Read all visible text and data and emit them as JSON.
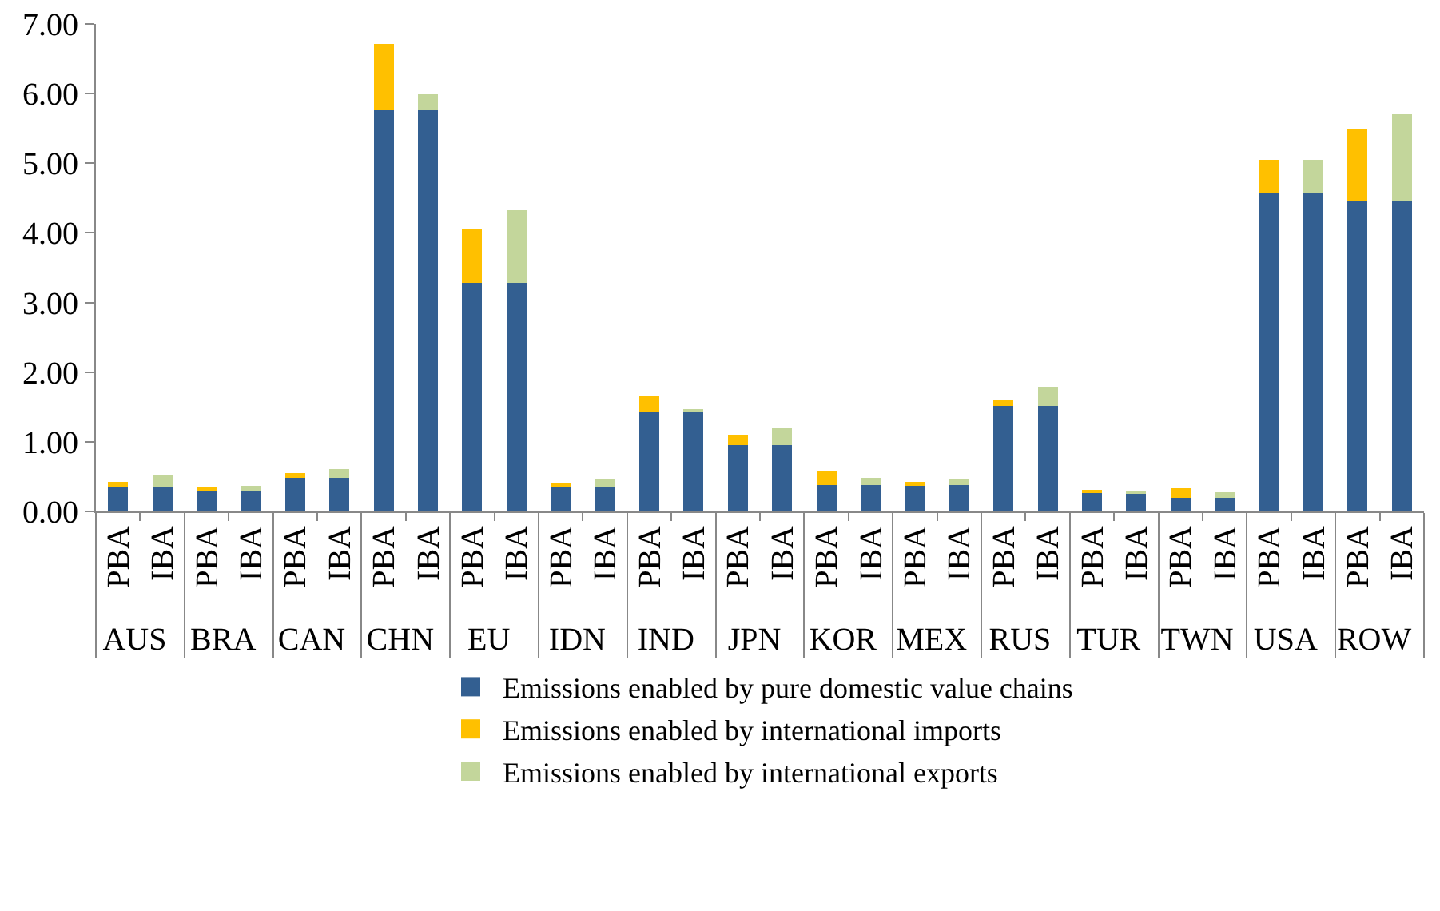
{
  "chart_data": {
    "type": "bar",
    "stacked": true,
    "categories": [
      "PBA",
      "IBA",
      "PBA",
      "IBA",
      "PBA",
      "IBA",
      "PBA",
      "IBA",
      "PBA",
      "IBA",
      "PBA",
      "IBA",
      "PBA",
      "IBA",
      "PBA",
      "IBA",
      "PBA",
      "IBA",
      "PBA",
      "IBA",
      "PBA",
      "IBA",
      "PBA",
      "IBA",
      "PBA",
      "IBA",
      "PBA",
      "IBA",
      "PBA",
      "IBA"
    ],
    "annotations": [
      "AUS",
      "BRA",
      "CAN",
      "CHN",
      "EU",
      "IDN",
      "IND",
      "JPN",
      "KOR",
      "MEX",
      "RUS",
      "TUR",
      "TWN",
      "USA",
      "ROW"
    ],
    "series": [
      {
        "name": "Emissions enabled by pure domestic value chains",
        "color": "#335f91",
        "values": [
          0.35,
          0.35,
          0.3,
          0.3,
          0.48,
          0.48,
          5.76,
          5.76,
          3.28,
          3.28,
          0.36,
          0.36,
          1.42,
          1.42,
          0.95,
          0.95,
          0.38,
          0.38,
          0.38,
          0.38,
          1.52,
          1.52,
          0.26,
          0.26,
          0.2,
          0.2,
          4.58,
          4.58,
          4.45,
          4.45
        ]
      },
      {
        "name": "Emissions enabled by international imports",
        "color": "#ffc000",
        "values": [
          0.08,
          null,
          0.04,
          null,
          0.07,
          null,
          0.95,
          null,
          0.77,
          null,
          0.04,
          null,
          0.24,
          null,
          0.15,
          null,
          0.19,
          null,
          0.04,
          null,
          0.08,
          null,
          0.05,
          null,
          0.13,
          null,
          0.47,
          null,
          1.05,
          null
        ]
      },
      {
        "name": "Emissions enabled by international exports",
        "color": "#c3d69b",
        "values": [
          null,
          0.17,
          null,
          0.07,
          null,
          0.13,
          null,
          0.23,
          null,
          1.05,
          null,
          0.1,
          null,
          0.05,
          null,
          0.25,
          null,
          0.1,
          null,
          0.08,
          null,
          0.27,
          null,
          0.04,
          null,
          0.07,
          null,
          0.47,
          null,
          1.25
        ]
      }
    ],
    "ylim": [
      0,
      7
    ],
    "yticks": [
      {
        "value": 0,
        "label": "0.00"
      },
      {
        "value": 1,
        "label": "1.00"
      },
      {
        "value": 2,
        "label": "2.00"
      },
      {
        "value": 3,
        "label": "3.00"
      },
      {
        "value": 4,
        "label": "4.00"
      },
      {
        "value": 5,
        "label": "5.00"
      },
      {
        "value": 6,
        "label": "6.00"
      },
      {
        "value": 7,
        "label": "7.00"
      }
    ],
    "grid": false,
    "legend": "bottom"
  }
}
